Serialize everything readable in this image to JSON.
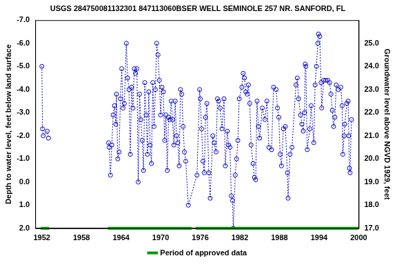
{
  "chart_data": {
    "type": "scatter",
    "title": "USGS 284750081132301 847113060BSER WELL SEMINOLE 257 NR. SANFORD, FL",
    "y_label": "Depth to water level, feet below land surface",
    "y2_label": "Groundwater level above NGVD 1929, feet",
    "xlim": [
      1951,
      2000
    ],
    "xticks": [
      1952,
      1958,
      1964,
      1970,
      1976,
      1982,
      1988,
      1994,
      2000
    ],
    "ylim": [
      -7,
      2
    ],
    "yticks": [
      {
        "value": -7,
        "label": "-7.0"
      },
      {
        "value": -6,
        "label": "-6.0"
      },
      {
        "value": -5,
        "label": "-5.0"
      },
      {
        "value": -4,
        "label": "-4.0"
      },
      {
        "value": -3,
        "label": "-3.0"
      },
      {
        "value": -2,
        "label": "-2.0"
      },
      {
        "value": -1,
        "label": "-1.0"
      },
      {
        "value": 0,
        "label": "0.0"
      },
      {
        "value": 1,
        "label": "1.0"
      },
      {
        "value": 2,
        "label": "2.0"
      }
    ],
    "y2lim": [
      17,
      26
    ],
    "y2ticks": [
      {
        "value": 17,
        "label": "17.0"
      },
      {
        "value": 18,
        "label": "18.0"
      },
      {
        "value": 19,
        "label": "19.0"
      },
      {
        "value": 20,
        "label": "20.0"
      },
      {
        "value": 21,
        "label": "21.0"
      },
      {
        "value": 22,
        "label": "22.0"
      },
      {
        "value": 23,
        "label": "23.0"
      },
      {
        "value": 24,
        "label": "24.0"
      },
      {
        "value": 25,
        "label": "25.0"
      }
    ],
    "grid": false,
    "color": "#0000cc",
    "marker": "circle",
    "line_style": "dotted",
    "x": [
      1952.0,
      1952.1,
      1952.2,
      1952.8,
      1953.0,
      1957.0,
      1962.1,
      1962.2,
      1962.4,
      1962.6,
      1962.8,
      1963.0,
      1963.2,
      1963.3,
      1963.5,
      1963.7,
      1963.9,
      1964.1,
      1964.3,
      1964.5,
      1964.8,
      1965.0,
      1965.2,
      1965.4,
      1965.6,
      1965.8,
      1966.0,
      1966.2,
      1966.4,
      1966.6,
      1966.8,
      1967.0,
      1967.2,
      1967.4,
      1967.6,
      1967.8,
      1968.0,
      1968.2,
      1968.4,
      1968.6,
      1968.8,
      1969.0,
      1969.2,
      1969.4,
      1969.6,
      1969.8,
      1970.0,
      1970.2,
      1970.4,
      1970.6,
      1970.8,
      1971.0,
      1971.2,
      1971.4,
      1971.6,
      1971.8,
      1972.0,
      1972.2,
      1972.4,
      1972.6,
      1972.8,
      1973.0,
      1973.2,
      1973.4,
      1973.6,
      1973.8,
      1974.2,
      1975.5,
      1975.9,
      1976.0,
      1976.2,
      1976.4,
      1976.6,
      1976.8,
      1977.0,
      1977.3,
      1977.5,
      1977.9,
      1978.1,
      1978.4,
      1978.6,
      1978.8,
      1979.0,
      1979.3,
      1979.6,
      1979.8,
      1980.1,
      1980.3,
      1980.5,
      1980.7,
      1980.9,
      1981.0,
      1981.3,
      1981.5,
      1981.7,
      1981.9,
      1982.3,
      1982.5,
      1982.7,
      1982.9,
      1983.1,
      1983.3,
      1983.5,
      1983.7,
      1984.0,
      1984.2,
      1984.4,
      1984.6,
      1984.8,
      1985.0,
      1985.4,
      1985.8,
      1986.1,
      1986.4,
      1986.8,
      1987.1,
      1987.5,
      1987.7,
      1987.9,
      1988.1,
      1988.3,
      1988.6,
      1988.9,
      1989.2,
      1989.3,
      1989.6,
      1989.9,
      1990.5,
      1990.7,
      1990.9,
      1991.2,
      1991.4,
      1991.6,
      1991.8,
      1991.9,
      1992.0,
      1992.2,
      1992.6,
      1992.8,
      1993.2,
      1993.4,
      1993.6,
      1993.8,
      1993.9,
      1994.1,
      1994.3,
      1994.4,
      1994.7,
      1995.0,
      1995.3,
      1995.6,
      1995.8,
      1996.0,
      1996.2,
      1996.4,
      1996.6,
      1996.9,
      1997.3,
      1997.5,
      1997.6,
      1997.8,
      1997.9,
      1998.2,
      1998.4,
      1998.5,
      1998.6,
      1998.7,
      1998.9
    ],
    "values": [
      -5.0,
      -2.3,
      -2.0,
      -2.2,
      -1.9,
      null,
      -1.7,
      -1.5,
      -0.3,
      -1.6,
      -2.9,
      -3.3,
      -2.5,
      -3.8,
      -1.0,
      -1.3,
      -3.6,
      -4.9,
      -3.2,
      -3.4,
      -6.0,
      -4.5,
      -4.0,
      -1.2,
      -4.1,
      -3.2,
      -4.9,
      -4.7,
      -4.9,
      0.0,
      -3.8,
      -2.7,
      -1.8,
      -0.5,
      -4.3,
      -2.9,
      -1.2,
      -3.9,
      -1.6,
      -0.8,
      -4.3,
      -2.4,
      -4.0,
      -6.0,
      -5.5,
      -4.4,
      -2.9,
      -4.1,
      -3.9,
      -1.8,
      -2.9,
      -0.5,
      -2.8,
      -2.7,
      -3.5,
      -2.7,
      -1.6,
      -3.5,
      -2.0,
      -1.7,
      -0.7,
      -4.0,
      -3.8,
      -2.4,
      -1.3,
      -0.9,
      1.0,
      -0.3,
      -4.0,
      -3.6,
      -2.3,
      -0.9,
      -0.4,
      -2.8,
      -3.4,
      -0.4,
      0.7,
      -2.0,
      -1.7,
      -1.3,
      -3.6,
      -3.5,
      -3.2,
      -2.3,
      -3.6,
      -0.7,
      -2.2,
      -1.6,
      -1.5,
      0.6,
      0.8,
      2.0,
      -0.3,
      -1.0,
      -1.8,
      -3.6,
      -4.1,
      -4.7,
      -4.5,
      -3.9,
      -3.8,
      -4.2,
      -3.4,
      -1.6,
      -0.8,
      -0.2,
      -0.1,
      -3.5,
      -2.4,
      -1.9,
      -3.2,
      -2.7,
      -3.5,
      -1.5,
      -1.4,
      -4.1,
      -4.0,
      -3.2,
      -2.8,
      -1.2,
      -0.7,
      -2.3,
      -2.4,
      -0.4,
      0.7,
      -1.2,
      -1.5,
      -4.2,
      -4.5,
      -3.6,
      -2.9,
      -2.5,
      -2.2,
      -3.0,
      -5.1,
      -5.0,
      -1.4,
      -2.3,
      -3.3,
      -1.7,
      -4.2,
      -5.0,
      -6.0,
      -6.4,
      -6.3,
      -4.3,
      -3.2,
      -4.4,
      -4.4,
      -4.4,
      -4.3,
      -3.8,
      -3.1,
      -2.4,
      -2.8,
      -4.2,
      -4.0,
      -4.1,
      -3.3,
      -1.2,
      -2.0,
      -2.5,
      -3.4,
      -3.5,
      -2.0,
      -0.6,
      -0.4,
      -2.7
    ],
    "approved_periods": {
      "name": "Period of approved data",
      "color": "#009900",
      "ranges": [
        [
          1951.8,
          1953.1
        ],
        [
          1962.0,
          1974.7
        ],
        [
          1975.3,
          2000.0
        ]
      ]
    },
    "legend": "bottom"
  }
}
